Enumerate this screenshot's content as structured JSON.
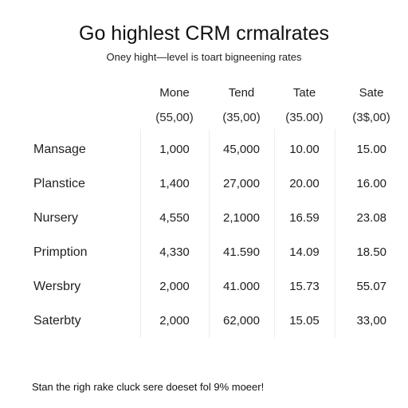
{
  "chart_data": {
    "type": "table",
    "title": "Go highlest CRM crmalrates",
    "subtitle": "Oney hight—level is toart bigneening rates",
    "columns": [
      {
        "label": "Mone",
        "unit": "(55,00)"
      },
      {
        "label": "Tend",
        "unit": "(35,00)"
      },
      {
        "label": "Tate",
        "unit": "(35.00)"
      },
      {
        "label": "Sate",
        "unit": "(3$,00)"
      }
    ],
    "rows": [
      {
        "label": "Mansage",
        "values": [
          "1,000",
          "45,000",
          "10.00",
          "15.00"
        ]
      },
      {
        "label": "Planstice",
        "values": [
          "1,400",
          "27,000",
          "20.00",
          "16.00"
        ]
      },
      {
        "label": "Nursery",
        "values": [
          "4,550",
          "2,1000",
          "16.59",
          "23.08"
        ]
      },
      {
        "label": "Primption",
        "values": [
          "4,330",
          "41.590",
          "14.09",
          "18.50"
        ]
      },
      {
        "label": "Wersbry",
        "values": [
          "2,000",
          "41.000",
          "15.73",
          "55.07"
        ]
      },
      {
        "label": "Saterbty",
        "values": [
          "2,000",
          "62,000",
          "15.05",
          "33,00"
        ]
      }
    ],
    "footnote": "Stan the righ rake cluck sere doeset fol 9% moeer!"
  }
}
